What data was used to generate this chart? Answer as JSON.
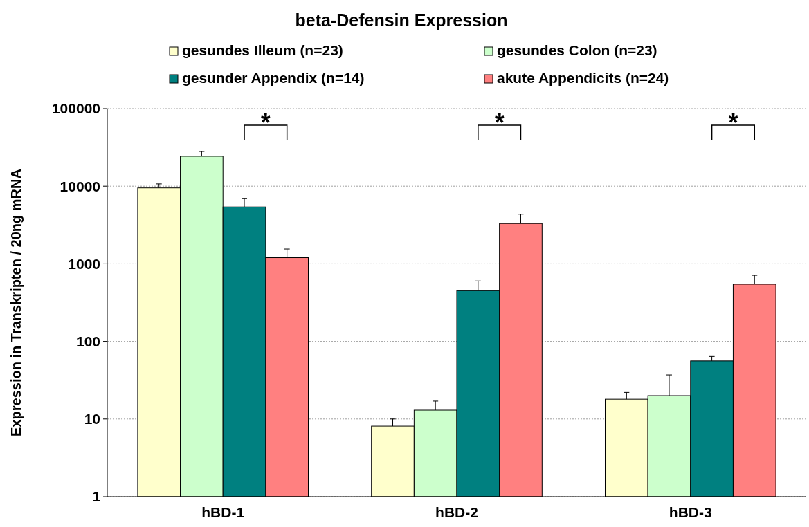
{
  "chart_data": {
    "type": "bar",
    "title": "beta-Defensin Expression",
    "ylabel": "Expression in Transkripten / 20ng mRNA",
    "categories": [
      "hBD-1",
      "hBD-2",
      "hBD-3"
    ],
    "series": [
      {
        "name": "gesundes Illeum (n=23)",
        "color": "#ffffcc",
        "values": [
          9500,
          8.1,
          18
        ],
        "errors": [
          [
            9500,
            10700
          ],
          [
            8.1,
            10
          ],
          [
            18,
            22
          ]
        ]
      },
      {
        "name": "gesundes Colon (n=23)",
        "color": "#ccffcc",
        "values": [
          24300,
          13,
          20
        ],
        "errors": [
          [
            24300,
            28000
          ],
          [
            13,
            17
          ],
          [
            20,
            37
          ]
        ]
      },
      {
        "name": "gesunder Appendix (n=14)",
        "color": "#008080",
        "values": [
          5400,
          450,
          56
        ],
        "errors": [
          [
            5400,
            6900
          ],
          [
            450,
            600
          ],
          [
            56,
            64
          ]
        ]
      },
      {
        "name": "akute Appendicits (n=24)",
        "color": "#ff8080",
        "values": [
          1200,
          3300,
          545
        ],
        "errors": [
          [
            1200,
            1550
          ],
          [
            3300,
            4350
          ],
          [
            545,
            710
          ]
        ]
      }
    ],
    "log": true,
    "ylim": [
      1,
      100000
    ],
    "yticks": [
      1,
      10,
      100,
      1000,
      10000,
      100000
    ],
    "grid": "y",
    "legend": "top",
    "annotations": [
      "*",
      "*",
      "*"
    ]
  }
}
